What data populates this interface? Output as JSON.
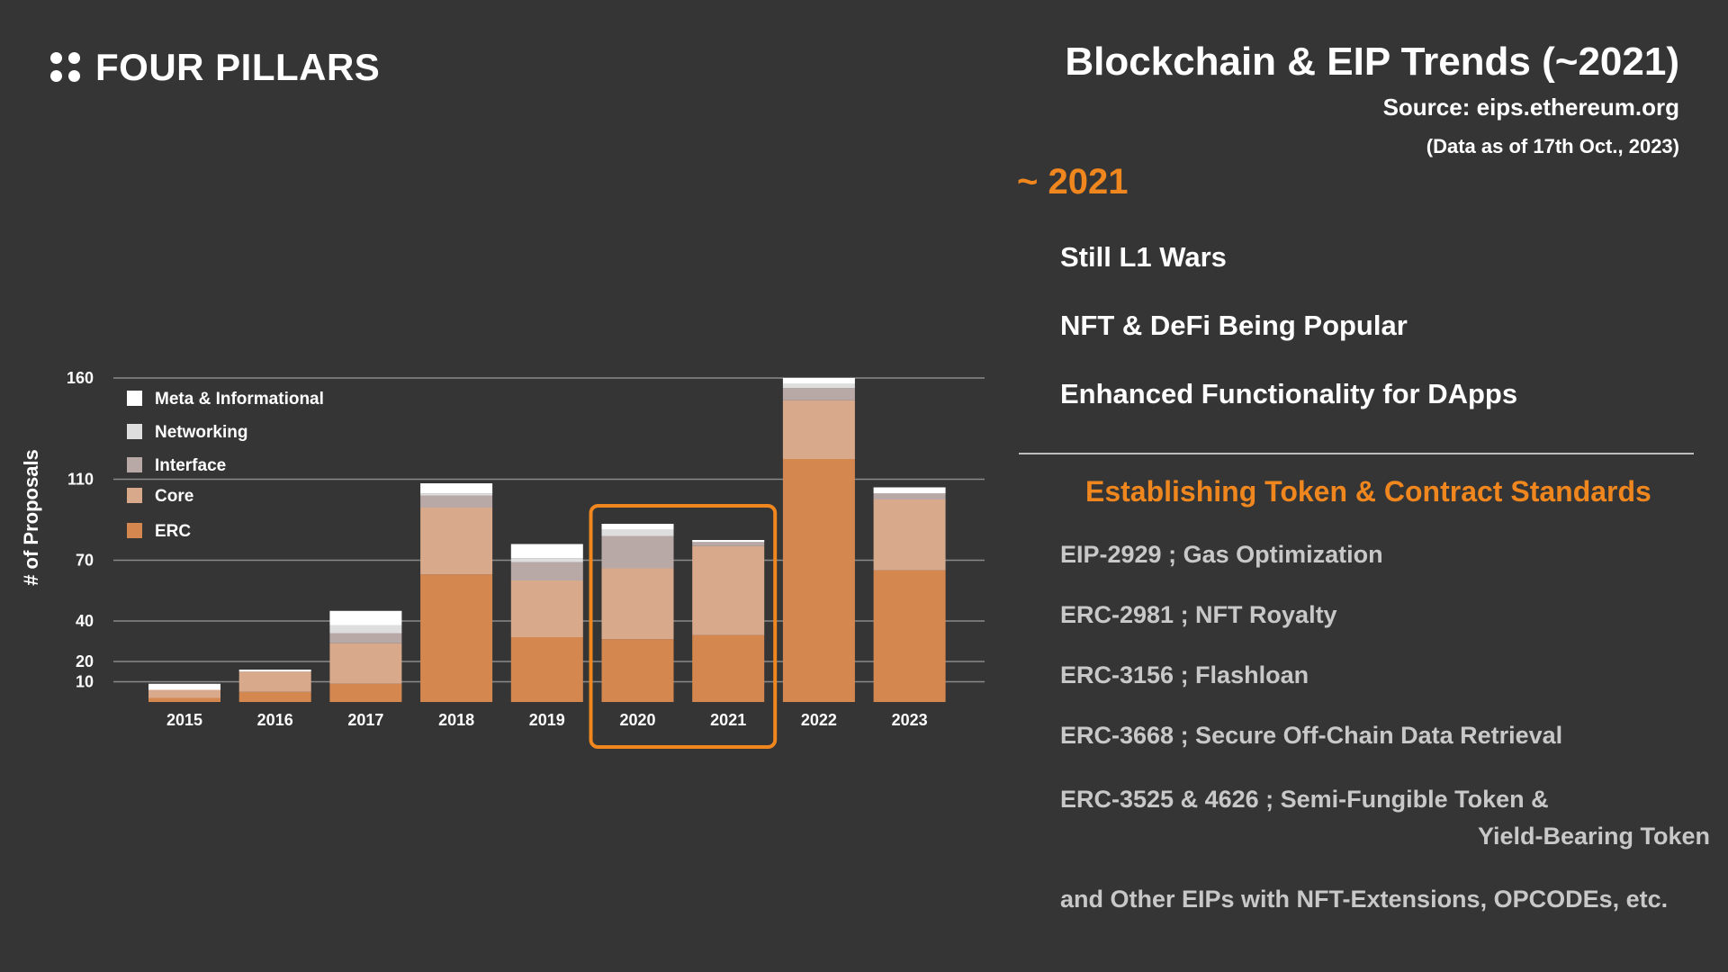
{
  "brand": {
    "name": "FOUR PILLARS",
    "logo_icon": "four-dots-icon"
  },
  "header": {
    "title": "Blockchain & EIP Trends (~2021)",
    "source": "Source: eips.ethereum.org",
    "as_of": "(Data as of 17th Oct., 2023)"
  },
  "era": {
    "label": "~ 2021",
    "points": [
      "Still L1 Wars",
      "NFT & DeFi Being Popular",
      "Enhanced Functionality for DApps"
    ]
  },
  "standards": {
    "heading": "Establishing Token & Contract Standards",
    "items": [
      "EIP-2929 ; Gas Optimization",
      "ERC-2981 ; NFT Royalty",
      "ERC-3156 ; Flashloan",
      "ERC-3668 ; Secure Off-Chain Data Retrieval",
      "ERC-3525 & 4626 ; Semi-Fungible Token &"
    ],
    "item_continuation": "Yield-Bearing Token",
    "footer": "and Other EIPs with NFT-Extensions, OPCODEs, etc."
  },
  "colors": {
    "background": "#353535",
    "accent": "#f0861e",
    "ERC": "#d4884f",
    "Core": "#d9a98c",
    "Interface": "#b8a9a6",
    "Networking": "#dedede",
    "Meta & Informational": "#ffffff"
  },
  "chart_data": {
    "type": "bar",
    "stacked": true,
    "title": "",
    "xlabel": "",
    "ylabel": "# of Proposals",
    "ylim": [
      0,
      160
    ],
    "yticks": [
      10,
      20,
      40,
      70,
      110,
      160
    ],
    "grid": true,
    "legend_position": "top-left",
    "highlight_categories": [
      "2020",
      "2021"
    ],
    "categories": [
      "2015",
      "2016",
      "2017",
      "2018",
      "2019",
      "2020",
      "2021",
      "2022",
      "2023"
    ],
    "series": [
      {
        "name": "ERC",
        "values": [
          2,
          5,
          9,
          63,
          32,
          31,
          33,
          120,
          65
        ]
      },
      {
        "name": "Core",
        "values": [
          4,
          10,
          20,
          33,
          28,
          35,
          44,
          29,
          35
        ]
      },
      {
        "name": "Interface",
        "values": [
          0,
          0,
          5,
          6,
          9,
          16,
          2,
          6,
          3
        ]
      },
      {
        "name": "Networking",
        "values": [
          0,
          0,
          4,
          1,
          2,
          3,
          0,
          2,
          0
        ]
      },
      {
        "name": "Meta & Informational",
        "values": [
          3,
          1,
          7,
          5,
          7,
          3,
          1,
          3,
          3
        ]
      }
    ],
    "legend_order": [
      "Meta & Informational",
      "Networking",
      "Interface",
      "Core",
      "ERC"
    ]
  }
}
